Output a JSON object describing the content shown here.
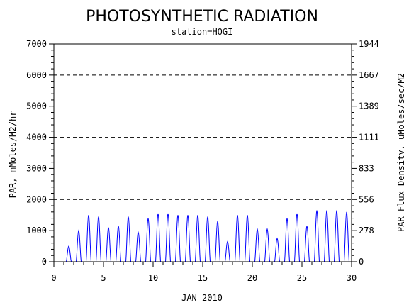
{
  "chart_data": {
    "type": "line",
    "title": "PHOTOSYNTHETIC RADIATION",
    "subtitle": "station=HOGI",
    "xlabel": "JAN 2010",
    "ylabel": "PAR, mMoles/M2/hr",
    "y2label": "PAR Flux Density, uMoles/sec/M2",
    "xlim": [
      0,
      30
    ],
    "ylim": [
      0,
      7000
    ],
    "x_ticks": [
      0,
      5,
      10,
      15,
      20,
      25,
      30
    ],
    "y_ticks": [
      0,
      1000,
      2000,
      3000,
      4000,
      5000,
      6000,
      7000
    ],
    "y2_tick_labels": [
      "0",
      "278",
      "556",
      "833",
      "1111",
      "1389",
      "1667",
      "1944"
    ],
    "gridlines_y": [
      2000,
      4000,
      6000
    ],
    "grid_style": "dashed",
    "line_color": "#0000ff",
    "series": [
      {
        "daily_peaks": [
          {
            "day": 1,
            "peak": 500
          },
          {
            "day": 2,
            "peak": 1000
          },
          {
            "day": 3,
            "peak": 1500
          },
          {
            "day": 4,
            "peak": 1450
          },
          {
            "day": 5,
            "peak": 1100
          },
          {
            "day": 6,
            "peak": 1150
          },
          {
            "day": 7,
            "peak": 1450
          },
          {
            "day": 8,
            "peak": 950
          },
          {
            "day": 9,
            "peak": 1400
          },
          {
            "day": 10,
            "peak": 1550
          },
          {
            "day": 11,
            "peak": 1550
          },
          {
            "day": 12,
            "peak": 1500
          },
          {
            "day": 13,
            "peak": 1500
          },
          {
            "day": 14,
            "peak": 1500
          },
          {
            "day": 15,
            "peak": 1450
          },
          {
            "day": 16,
            "peak": 1300
          },
          {
            "day": 17,
            "peak": 650
          },
          {
            "day": 18,
            "peak": 1500
          },
          {
            "day": 19,
            "peak": 1500
          },
          {
            "day": 20,
            "peak": 1050
          },
          {
            "day": 21,
            "peak": 1050
          },
          {
            "day": 22,
            "peak": 750
          },
          {
            "day": 23,
            "peak": 1400
          },
          {
            "day": 24,
            "peak": 1550
          },
          {
            "day": 25,
            "peak": 1150
          },
          {
            "day": 26,
            "peak": 1650
          },
          {
            "day": 27,
            "peak": 1650
          },
          {
            "day": 28,
            "peak": 1650
          },
          {
            "day": 29,
            "peak": 1600
          }
        ]
      }
    ]
  }
}
